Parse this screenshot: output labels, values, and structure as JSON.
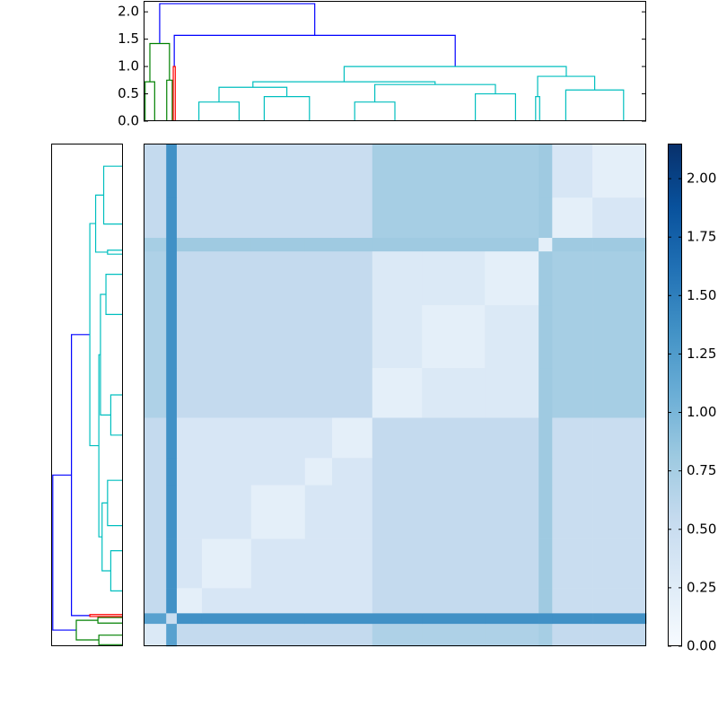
{
  "chart_data": [
    {
      "type": "dendrogram",
      "orientations": [
        "top",
        "left"
      ],
      "xlim": [
        0,
        100
      ],
      "ylim": [
        0,
        2.2
      ],
      "yticks": [
        {
          "value": 0,
          "label": "0.0"
        },
        {
          "value": 0.5,
          "label": "0.5"
        },
        {
          "value": 1,
          "label": "1.0"
        },
        {
          "value": 1.5,
          "label": "1.5"
        },
        {
          "value": 2,
          "label": "2.0"
        }
      ],
      "links": [
        {
          "left": 3.2,
          "right": 34.05,
          "height": 2.15,
          "left_height": 1.42,
          "right_height": 1.57,
          "color": "#0000ff"
        },
        {
          "left": 6.1,
          "right": 62.0,
          "height": 1.57,
          "left_height": 1.0,
          "right_height": 1.0,
          "color": "#0000ff"
        },
        {
          "left": 1.25,
          "right": 5.15,
          "height": 1.42,
          "left_height": 0.72,
          "right_height": 0.75,
          "color": "#008000"
        },
        {
          "left": 0.3,
          "right": 2.2,
          "height": 0.72,
          "left_height": 0,
          "right_height": 0,
          "color": "#008000"
        },
        {
          "left": 4.6,
          "right": 5.7,
          "height": 0.75,
          "left_height": 0,
          "right_height": 0,
          "color": "#008000"
        },
        {
          "left": 5.9,
          "right": 6.3,
          "height": 1.0,
          "left_height": 0,
          "right_height": 0,
          "color": "#ff0000"
        },
        {
          "left": 39.9,
          "right": 84.1,
          "height": 1.0,
          "left_height": 0.72,
          "right_height": 0.82,
          "color": "#00bfbf"
        },
        {
          "left": 21.75,
          "right": 58.0,
          "height": 0.72,
          "left_height": 0.62,
          "right_height": 0.67,
          "color": "#00bfbf"
        },
        {
          "left": 15.0,
          "right": 28.5,
          "height": 0.62,
          "left_height": 0.35,
          "right_height": 0.45,
          "color": "#00bfbf"
        },
        {
          "left": 11.0,
          "right": 19.0,
          "height": 0.35,
          "left_height": 0,
          "right_height": 0,
          "color": "#00bfbf"
        },
        {
          "left": 24.0,
          "right": 33.0,
          "height": 0.45,
          "left_height": 0,
          "right_height": 0,
          "color": "#00bfbf"
        },
        {
          "left": 46.0,
          "right": 70.0,
          "height": 0.67,
          "left_height": 0.35,
          "right_height": 0.5,
          "color": "#00bfbf"
        },
        {
          "left": 42.0,
          "right": 50.0,
          "height": 0.35,
          "left_height": 0,
          "right_height": 0,
          "color": "#00bfbf"
        },
        {
          "left": 66.0,
          "right": 74.0,
          "height": 0.5,
          "left_height": 0,
          "right_height": 0,
          "color": "#00bfbf"
        },
        {
          "left": 78.4,
          "right": 89.75,
          "height": 0.82,
          "left_height": 0.45,
          "right_height": 0.57,
          "color": "#00bfbf"
        },
        {
          "left": 78.0,
          "right": 78.8,
          "height": 0.45,
          "left_height": 0,
          "right_height": 0,
          "color": "#00bfbf"
        },
        {
          "left": 84.0,
          "right": 95.5,
          "height": 0.57,
          "left_height": 0,
          "right_height": 0,
          "color": "#00bfbf"
        }
      ]
    },
    {
      "type": "heatmap",
      "edges": [
        0,
        4.5,
        6.6,
        11.6,
        21.4,
        32.1,
        37.5,
        45.5,
        55.4,
        67.9,
        78.6,
        81.3,
        89.3,
        100
      ],
      "values": [
        [
          0.3,
          1.2,
          0.55,
          0.55,
          0.55,
          0.55,
          0.55,
          0.7,
          0.7,
          0.7,
          0.75,
          0.55,
          0.55
        ],
        [
          1.2,
          0.5,
          1.35,
          1.35,
          1.35,
          1.35,
          1.35,
          1.35,
          1.35,
          1.35,
          1.35,
          1.35,
          1.35
        ],
        [
          0.55,
          1.35,
          0.2,
          0.35,
          0.35,
          0.35,
          0.35,
          0.55,
          0.55,
          0.55,
          0.8,
          0.5,
          0.5
        ],
        [
          0.55,
          1.35,
          0.35,
          0.2,
          0.35,
          0.35,
          0.35,
          0.55,
          0.55,
          0.55,
          0.8,
          0.5,
          0.5
        ],
        [
          0.55,
          1.35,
          0.35,
          0.35,
          0.2,
          0.35,
          0.35,
          0.55,
          0.55,
          0.55,
          0.8,
          0.5,
          0.5
        ],
        [
          0.55,
          1.35,
          0.35,
          0.35,
          0.35,
          0.2,
          0.35,
          0.55,
          0.55,
          0.55,
          0.8,
          0.5,
          0.5
        ],
        [
          0.55,
          1.35,
          0.35,
          0.35,
          0.35,
          0.35,
          0.2,
          0.55,
          0.55,
          0.55,
          0.8,
          0.5,
          0.5
        ],
        [
          0.7,
          1.35,
          0.55,
          0.55,
          0.55,
          0.55,
          0.55,
          0.2,
          0.3,
          0.3,
          0.8,
          0.75,
          0.75
        ],
        [
          0.7,
          1.35,
          0.55,
          0.55,
          0.55,
          0.55,
          0.55,
          0.3,
          0.2,
          0.3,
          0.8,
          0.75,
          0.75
        ],
        [
          0.7,
          1.35,
          0.55,
          0.55,
          0.55,
          0.55,
          0.55,
          0.3,
          0.3,
          0.2,
          0.8,
          0.75,
          0.75
        ],
        [
          0.75,
          1.35,
          0.8,
          0.8,
          0.8,
          0.8,
          0.8,
          0.8,
          0.8,
          0.8,
          0.2,
          0.8,
          0.8
        ],
        [
          0.55,
          1.35,
          0.5,
          0.5,
          0.5,
          0.5,
          0.5,
          0.75,
          0.75,
          0.75,
          0.8,
          0.2,
          0.35
        ],
        [
          0.55,
          1.35,
          0.5,
          0.5,
          0.5,
          0.5,
          0.5,
          0.75,
          0.75,
          0.75,
          0.8,
          0.35,
          0.2
        ]
      ],
      "clim": [
        0,
        2.15
      ],
      "colormap": [
        "#f7fbff",
        "#deebf7",
        "#c6dbef",
        "#9ecae1",
        "#6baed6",
        "#4292c6",
        "#2171b5",
        "#08519c",
        "#08306b"
      ],
      "colorbar_ticks": [
        {
          "value": 0,
          "label": "0.00"
        },
        {
          "value": 0.25,
          "label": "0.25"
        },
        {
          "value": 0.5,
          "label": "0.50"
        },
        {
          "value": 0.75,
          "label": "0.75"
        },
        {
          "value": 1,
          "label": "1.00"
        },
        {
          "value": 1.25,
          "label": "1.25"
        },
        {
          "value": 1.5,
          "label": "1.50"
        },
        {
          "value": 1.75,
          "label": "1.75"
        },
        {
          "value": 2,
          "label": "2.00"
        }
      ]
    }
  ]
}
